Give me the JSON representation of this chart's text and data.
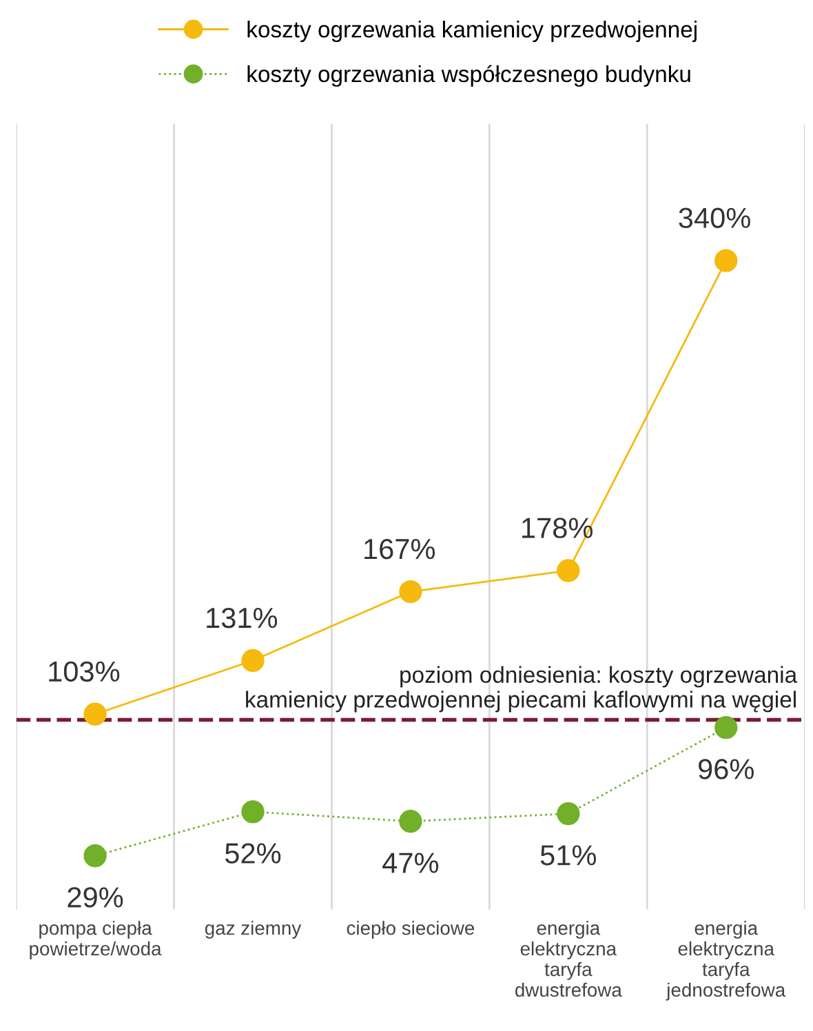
{
  "chart_data": {
    "type": "line",
    "categories": [
      "pompa ciepła\npowietrze/woda",
      "gaz ziemny",
      "ciepło sieciowe",
      "energia\nelektryczna\ntaryfa\ndwustrefowa",
      "energia\nelektryczna\ntaryfa\njednostrefowa"
    ],
    "series": [
      {
        "name": "koszty ogrzewania kamienicy przedwojennej",
        "color": "#f6b90d",
        "values": [
          103,
          131,
          167,
          178,
          340
        ],
        "value_labels": [
          "103%",
          "131%",
          "167%",
          "178%",
          "340%"
        ],
        "line_style": "solid"
      },
      {
        "name": "koszty ogrzewania współczesnego budynku",
        "color": "#72b02a",
        "values": [
          29,
          52,
          47,
          51,
          96
        ],
        "value_labels": [
          "29%",
          "52%",
          "47%",
          "51%",
          "96%"
        ],
        "line_style": "dotted"
      }
    ],
    "tick_labels": "x",
    "grid": "x",
    "legend": "top",
    "marker": "circle",
    "ref_lines": [
      {
        "axis": "y",
        "value": 100,
        "label": "poziom odniesienia: koszty ogrzewania\nkamienicy przedwojennej piecami kaflowymi na węgiel",
        "color": "#7b1c33",
        "line_style": "dashed"
      }
    ]
  }
}
